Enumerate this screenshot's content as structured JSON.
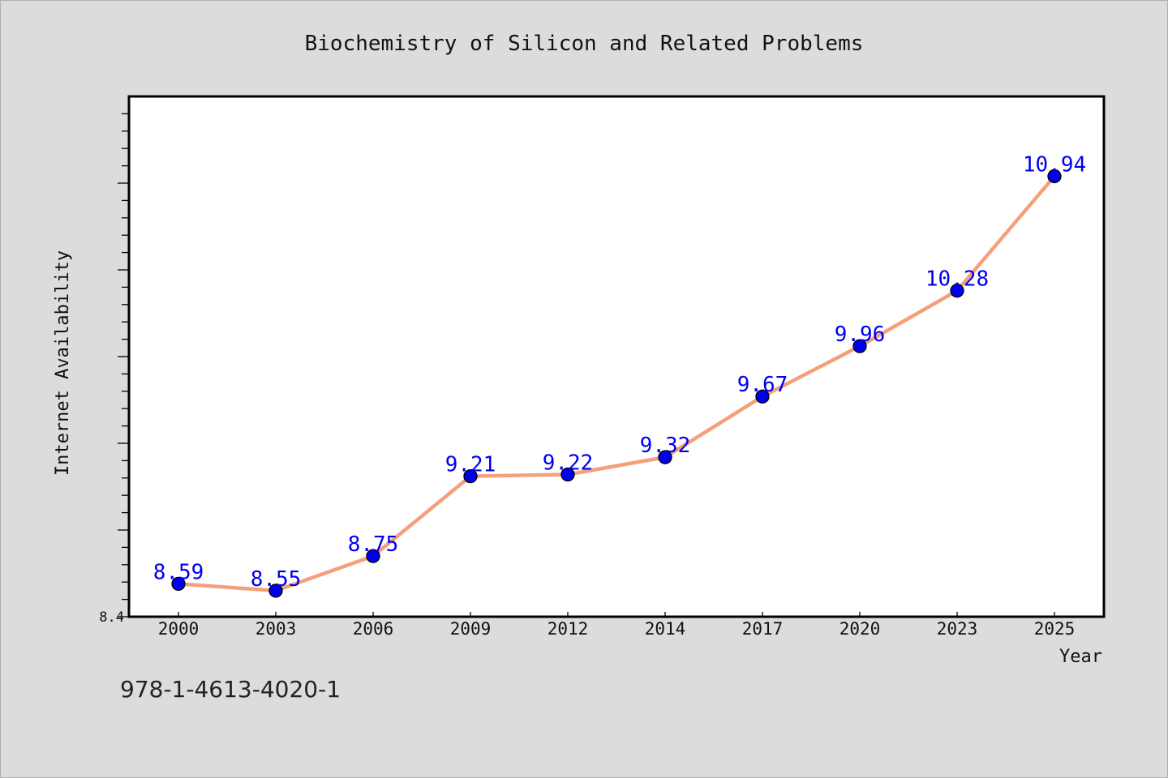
{
  "chart_data": {
    "type": "line",
    "title": "Biochemistry of Silicon and Related Problems",
    "xlabel": "Year",
    "ylabel": "Internet Availability",
    "categories": [
      "2000",
      "2003",
      "2006",
      "2009",
      "2012",
      "2014",
      "2017",
      "2020",
      "2023",
      "2025"
    ],
    "series": [
      {
        "values": [
          8.59,
          8.55,
          8.75,
          9.21,
          9.22,
          9.32,
          9.67,
          9.96,
          10.28,
          10.94
        ]
      }
    ],
    "ylim": [
      8.4,
      11.4
    ],
    "y_tick_labels": [
      "8.4"
    ],
    "grid": false,
    "data_labels": [
      "8.59",
      "8.55",
      "8.75",
      "9.21",
      "9.22",
      "9.32",
      "9.67",
      "9.96",
      "10.28",
      "10.94"
    ],
    "colors": {
      "line": "#f4a07a",
      "marker": "#0000ee",
      "label": "#0000ee",
      "background": "#dcdcdc",
      "plot": "#ffffff"
    }
  },
  "footer": {
    "isbn": "978-1-4613-4020-1"
  }
}
